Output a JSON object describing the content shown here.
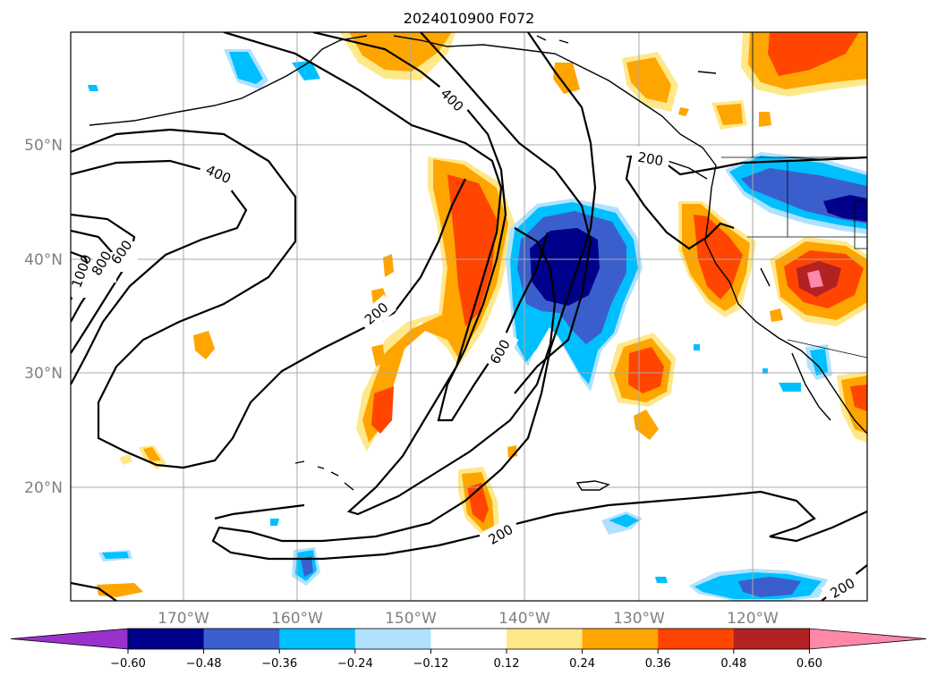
{
  "title": "2024010900 F072",
  "map": {
    "lat_labels": [
      "50°N",
      "40°N",
      "30°N",
      "20°N"
    ],
    "lon_labels": [
      "170°W",
      "160°W",
      "150°W",
      "140°W",
      "130°W",
      "120°W"
    ],
    "extent": {
      "lon": [
        -180,
        -110
      ],
      "lat": [
        10,
        60
      ]
    }
  },
  "contours": {
    "labels": [
      "400",
      "400",
      "1000",
      "800",
      "600",
      "200",
      "600",
      "200",
      "200",
      "200"
    ]
  },
  "colorbar": {
    "ticks": [
      "−0.60",
      "−0.48",
      "−0.36",
      "−0.24",
      "−0.12",
      "0.12",
      "0.24",
      "0.36",
      "0.48",
      "0.60"
    ],
    "colors": [
      "#9932CC",
      "#00008B",
      "#3A5FCD",
      "#00BFFF",
      "#B0E2FF",
      "#FFFFFF",
      "#FFE88A",
      "#FFA500",
      "#FF4500",
      "#B22222",
      "#FF88AA"
    ]
  }
}
